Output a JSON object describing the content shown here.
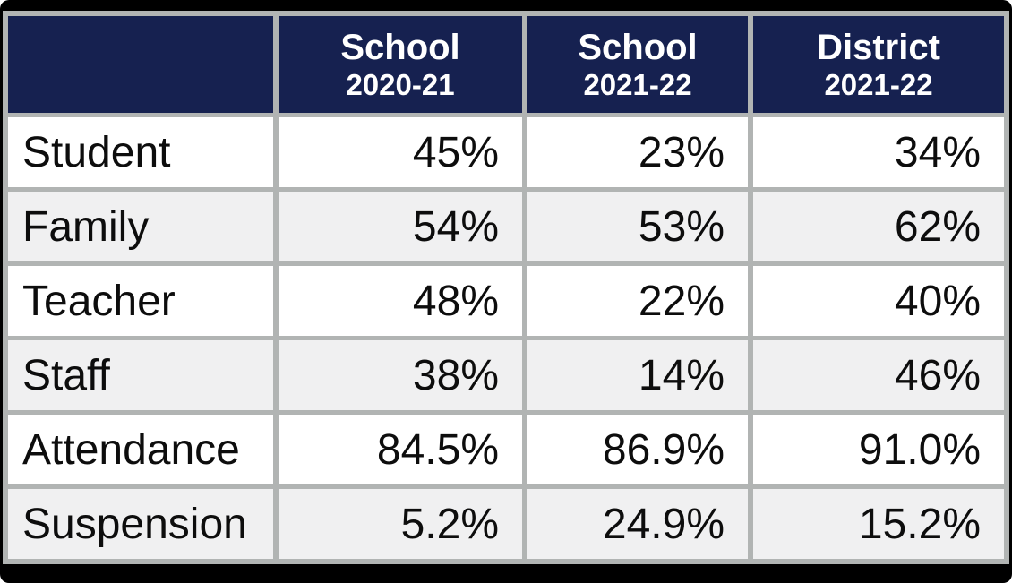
{
  "chart_data": {
    "type": "table",
    "title": "",
    "column_headers": [
      {
        "line1": "School",
        "line2": "2020-21"
      },
      {
        "line1": "School",
        "line2": "2021-22"
      },
      {
        "line1": "District",
        "line2": "2021-22"
      }
    ],
    "corner_cell": "",
    "rows": [
      {
        "label": "Student",
        "values": [
          "45%",
          "23%",
          "34%"
        ]
      },
      {
        "label": "Family",
        "values": [
          "54%",
          "53%",
          "62%"
        ]
      },
      {
        "label": "Teacher",
        "values": [
          "48%",
          "22%",
          "40%"
        ]
      },
      {
        "label": "Staff",
        "values": [
          "38%",
          "14%",
          "46%"
        ]
      },
      {
        "label": "Attendance",
        "values": [
          "84.5%",
          "86.9%",
          "91.0%"
        ]
      },
      {
        "label": "Suspension",
        "values": [
          "5.2%",
          "24.9%",
          "15.2%"
        ]
      }
    ]
  },
  "colors": {
    "header_bg": "#162150",
    "header_text": "#ffffff",
    "border_gray": "#b1b4b3",
    "row_white": "#ffffff",
    "row_alt_gray": "#f0f0f1",
    "body_text": "#0d0d0d",
    "outer_frame": "#000000"
  }
}
